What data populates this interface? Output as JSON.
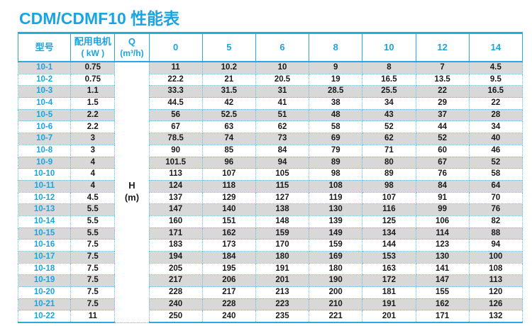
{
  "page": {
    "title": "CDM/CDMF10 性能表"
  },
  "colors": {
    "accent": "#1ba4e2",
    "solid_border": "#29a9e2",
    "dotted_border": "#55c3ec",
    "stripe_gray": "#d8d8d8",
    "body_text": "#1a1a1a"
  },
  "table": {
    "header": {
      "model": "型号",
      "motor_line1": "配用电机",
      "motor_line2": "( kW )",
      "q_line1": "Q",
      "q_line2": "(m³/h)"
    },
    "q_columns": [
      "0",
      "5",
      "6",
      "8",
      "10",
      "12",
      "14"
    ],
    "h_label": "H",
    "h_unit": "(m)",
    "rows": [
      {
        "model": "10-1",
        "kw": "0.75",
        "values": [
          "11",
          "10.2",
          "10",
          "9",
          "8",
          "7",
          "4.5"
        ]
      },
      {
        "model": "10-2",
        "kw": "0.75",
        "values": [
          "22.2",
          "21",
          "20.5",
          "19",
          "16.5",
          "13.5",
          "9.5"
        ]
      },
      {
        "model": "10-3",
        "kw": "1.1",
        "values": [
          "33.3",
          "31.5",
          "31",
          "28.5",
          "25.5",
          "22",
          "16.5"
        ]
      },
      {
        "model": "10-4",
        "kw": "1.5",
        "values": [
          "44.5",
          "42",
          "41",
          "38",
          "34",
          "29",
          "22"
        ]
      },
      {
        "model": "10-5",
        "kw": "2.2",
        "values": [
          "56",
          "52.5",
          "51",
          "48",
          "43",
          "37",
          "28"
        ]
      },
      {
        "model": "10-6",
        "kw": "2.2",
        "values": [
          "67",
          "63",
          "62",
          "58",
          "52",
          "44",
          "34"
        ]
      },
      {
        "model": "10-7",
        "kw": "3",
        "values": [
          "78.5",
          "74",
          "73",
          "69",
          "62",
          "52",
          "40"
        ]
      },
      {
        "model": "10-8",
        "kw": "3",
        "values": [
          "90",
          "85",
          "84",
          "79",
          "71",
          "60",
          "46"
        ]
      },
      {
        "model": "10-9",
        "kw": "4",
        "values": [
          "101.5",
          "96",
          "94",
          "89",
          "80",
          "67",
          "52"
        ]
      },
      {
        "model": "10-10",
        "kw": "4",
        "values": [
          "113",
          "107",
          "105",
          "98",
          "89",
          "76",
          "58"
        ]
      },
      {
        "model": "10-11",
        "kw": "4",
        "values": [
          "124",
          "118",
          "115",
          "108",
          "98",
          "84",
          "64"
        ]
      },
      {
        "model": "10-12",
        "kw": "4.5",
        "values": [
          "137",
          "129",
          "127",
          "119",
          "107",
          "91",
          "70"
        ]
      },
      {
        "model": "10-13",
        "kw": "5.5",
        "values": [
          "147",
          "140",
          "138",
          "130",
          "116",
          "99",
          "76"
        ]
      },
      {
        "model": "10-14",
        "kw": "5.5",
        "values": [
          "160",
          "151",
          "148",
          "139",
          "125",
          "106",
          "82"
        ]
      },
      {
        "model": "10-15",
        "kw": "5.5",
        "values": [
          "171",
          "162",
          "159",
          "149",
          "134",
          "114",
          "88"
        ]
      },
      {
        "model": "10-16",
        "kw": "7.5",
        "values": [
          "183",
          "173",
          "170",
          "159",
          "144",
          "123",
          "94"
        ]
      },
      {
        "model": "10-17",
        "kw": "7.5",
        "values": [
          "194",
          "184",
          "180",
          "169",
          "153",
          "130",
          "100"
        ]
      },
      {
        "model": "10-18",
        "kw": "7.5",
        "values": [
          "205",
          "195",
          "191",
          "180",
          "163",
          "141",
          "108"
        ]
      },
      {
        "model": "10-19",
        "kw": "7.5",
        "values": [
          "217",
          "206",
          "201",
          "190",
          "172",
          "147",
          "113"
        ]
      },
      {
        "model": "10-20",
        "kw": "7.5",
        "values": [
          "228",
          "217",
          "213",
          "200",
          "181",
          "155",
          "120"
        ]
      },
      {
        "model": "10-21",
        "kw": "7.5",
        "values": [
          "240",
          "228",
          "223",
          "210",
          "191",
          "162",
          "126"
        ]
      },
      {
        "model": "10-22",
        "kw": "11",
        "values": [
          "250",
          "240",
          "235",
          "221",
          "201",
          "171",
          "132"
        ]
      }
    ]
  }
}
